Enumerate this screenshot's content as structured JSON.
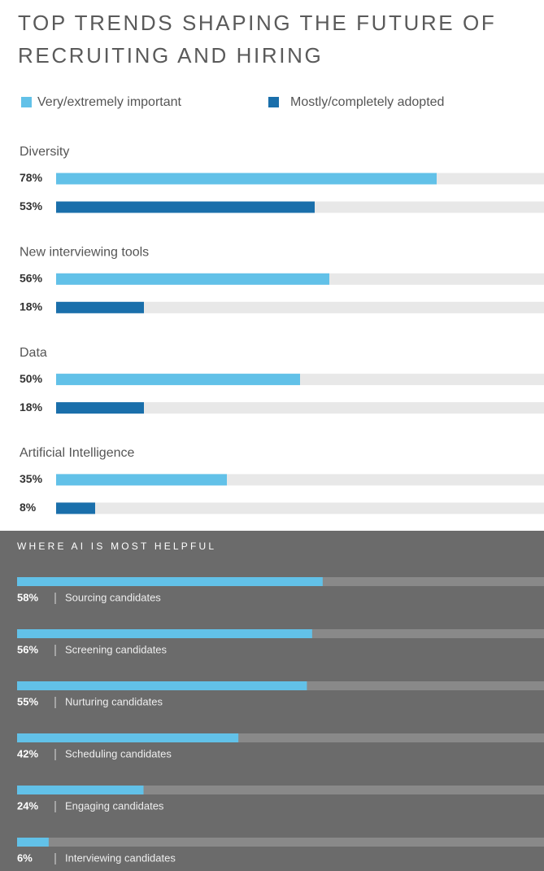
{
  "chart_data": [
    {
      "type": "bar",
      "orientation": "horizontal",
      "title": "TOP TRENDS SHAPING THE FUTURE OF RECRUITING AND HIRING",
      "categories": [
        "Diversity",
        "New interviewing tools",
        "Data",
        "Artificial Intelligence"
      ],
      "series": [
        {
          "name": "Very/extremely important",
          "color": "#62c1e8",
          "values": [
            78,
            56,
            50,
            35
          ],
          "value_labels": [
            "78%",
            "56%",
            "50%",
            "35%"
          ]
        },
        {
          "name": "Mostly/completely adopted",
          "color": "#1a6fab",
          "values": [
            53,
            18,
            18,
            8
          ],
          "value_labels": [
            "53%",
            "18%",
            "18%",
            "8%"
          ]
        }
      ],
      "xlim": [
        0,
        100
      ],
      "track_color": "#e8e8e8"
    },
    {
      "type": "bar",
      "orientation": "horizontal",
      "title": "WHERE AI IS MOST HELPFUL",
      "categories": [
        "Sourcing candidates",
        "Screening candidates",
        "Nurturing candidates",
        "Scheduling candidates",
        "Engaging candidates",
        "Interviewing candidates"
      ],
      "values": [
        58,
        56,
        55,
        42,
        24,
        6
      ],
      "value_labels": [
        "58%",
        "56%",
        "55%",
        "42%",
        "24%",
        "6%"
      ],
      "color": "#62c1e8",
      "xlim": [
        0,
        100
      ],
      "track_color": "#898989",
      "background": "#6b6b6b"
    }
  ]
}
